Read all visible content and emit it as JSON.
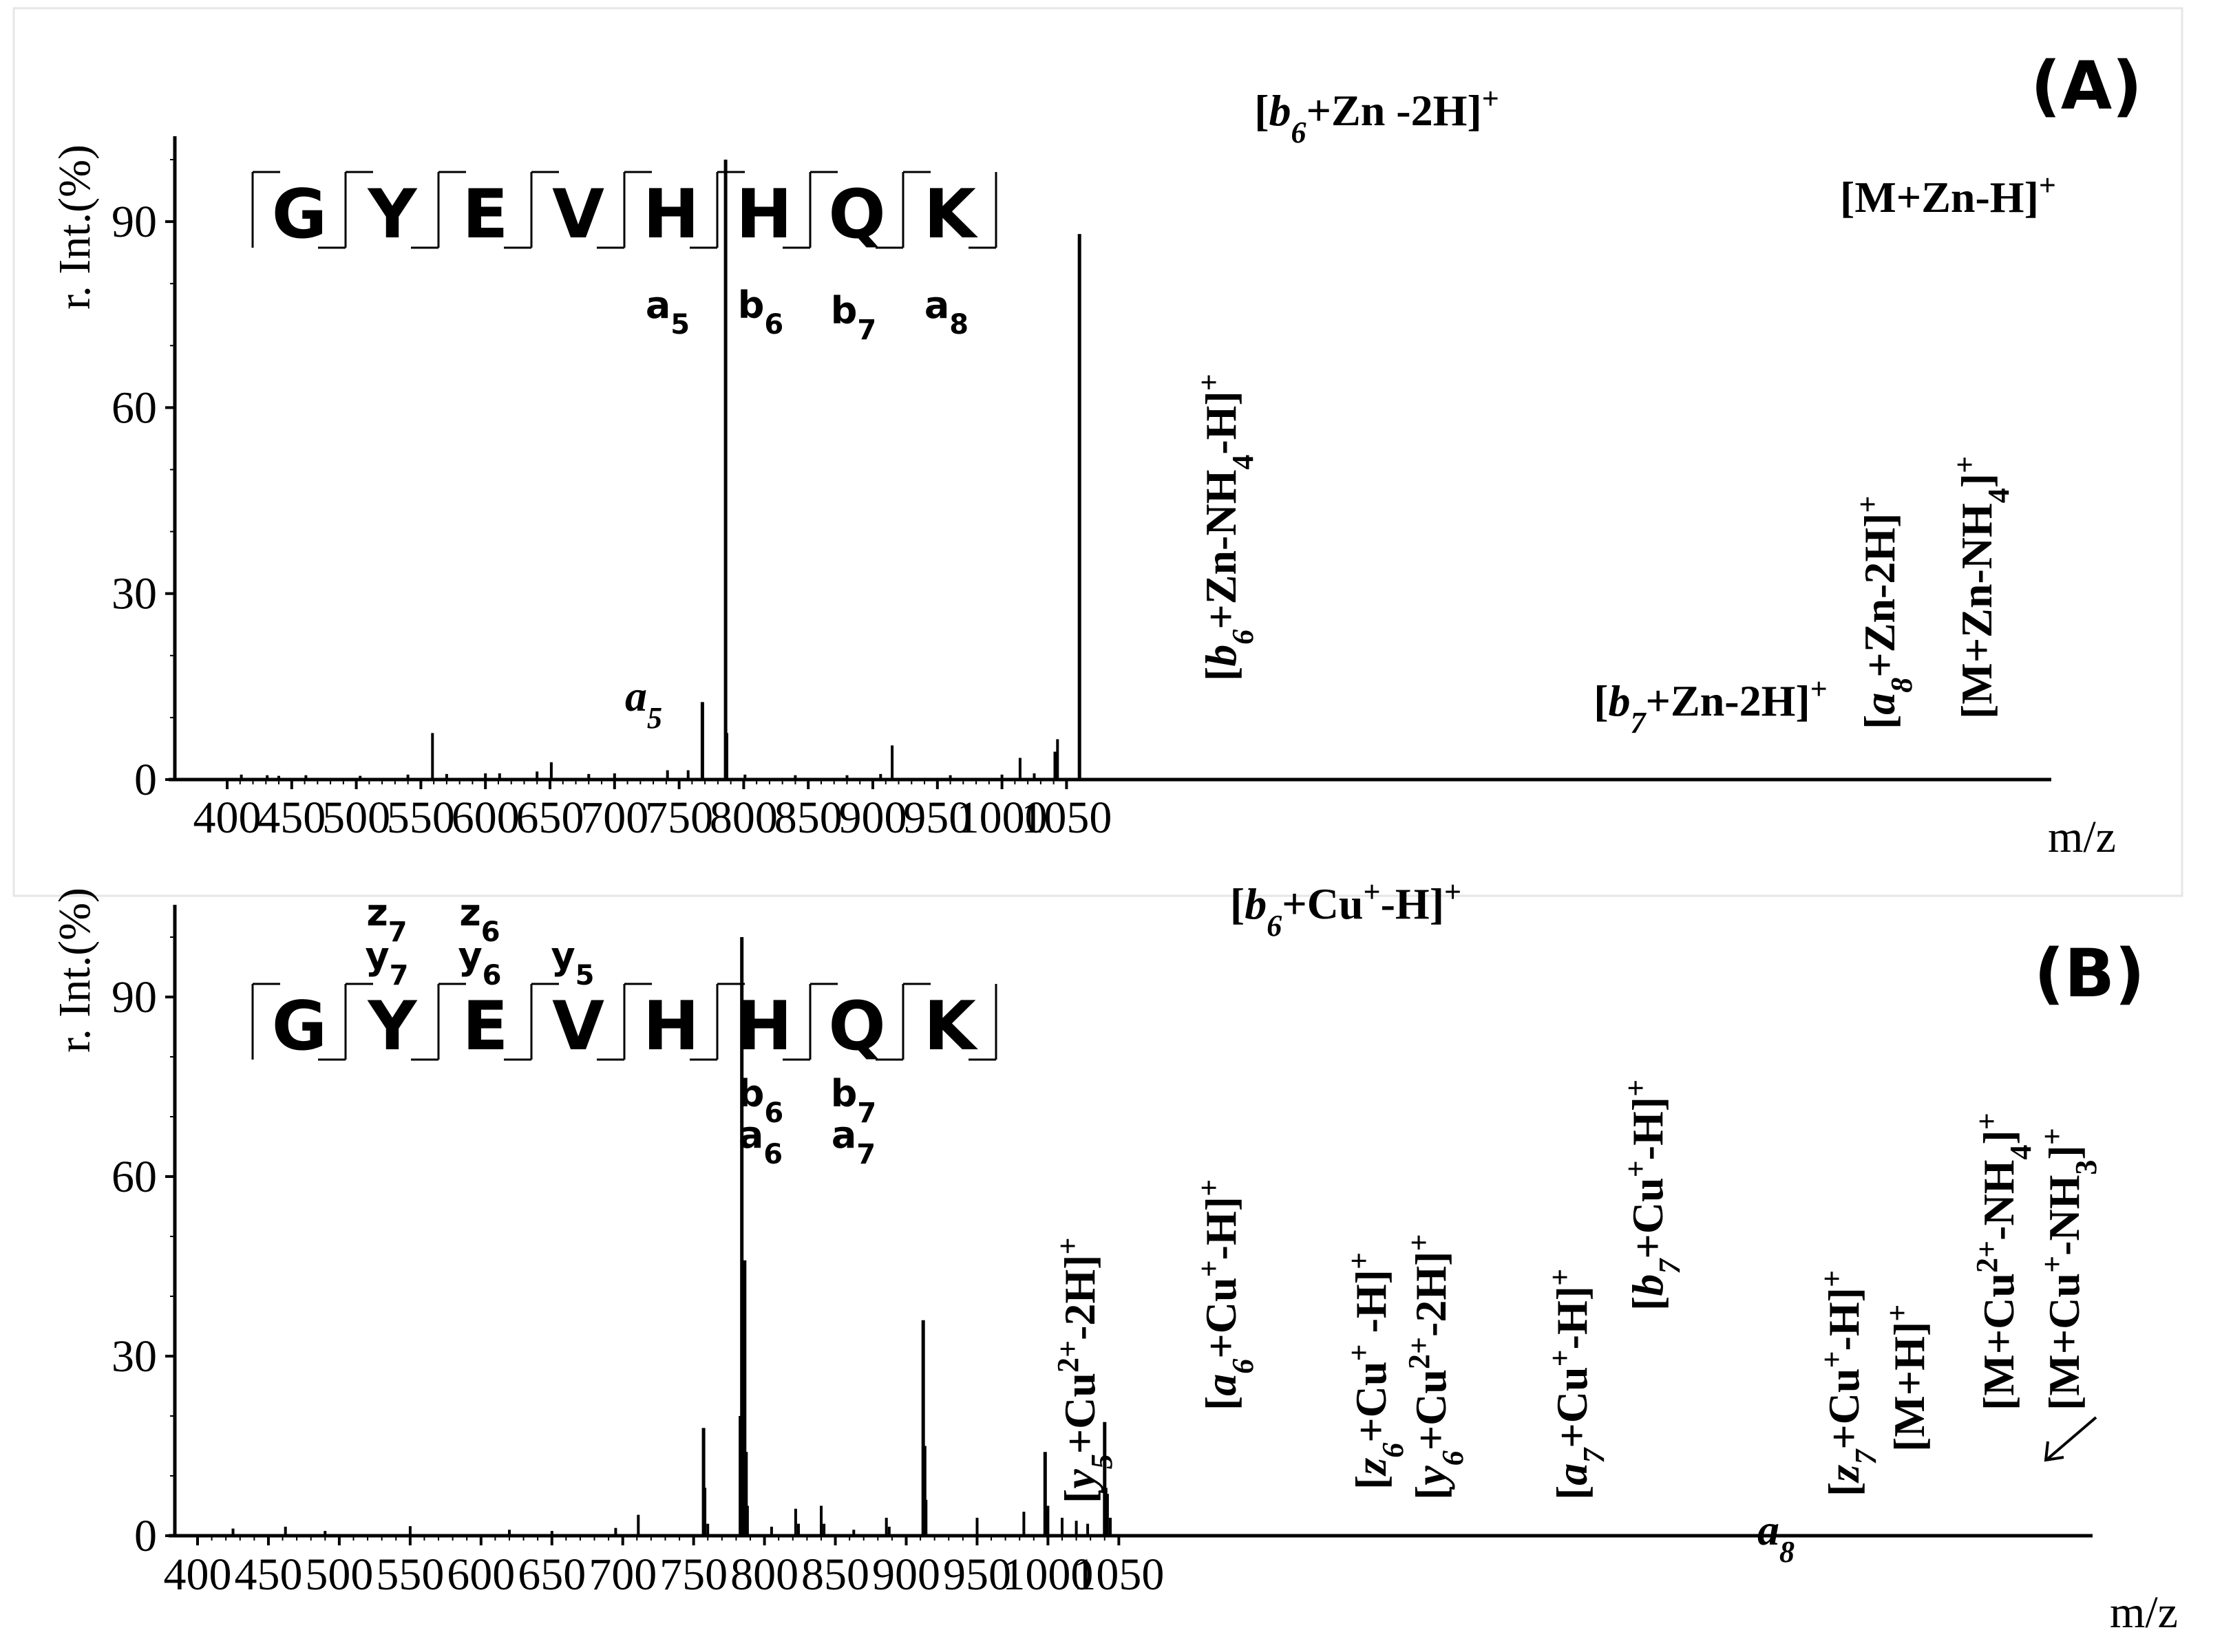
{
  "chart_data": [
    {
      "type": "bar",
      "panel_label": "(A)",
      "ylabel": "r. Int.(%)",
      "xlabel": "m/z",
      "xlim": [
        385,
        1070
      ],
      "ylim": [
        0,
        104
      ],
      "xticks": [
        "400",
        "450",
        "500",
        "550",
        "600",
        "650",
        "700",
        "750",
        "800",
        "850",
        "900",
        "950",
        "1000",
        "1050"
      ],
      "yticks": [
        "0",
        "30",
        "60",
        "90"
      ],
      "peaks": [
        {
          "mz": 411,
          "int": 0.8
        },
        {
          "mz": 431,
          "int": 0.7
        },
        {
          "mz": 440,
          "int": 0.6
        },
        {
          "mz": 461,
          "int": 0.7
        },
        {
          "mz": 503,
          "int": 0.6
        },
        {
          "mz": 540,
          "int": 0.8
        },
        {
          "mz": 559,
          "int": 7.5
        },
        {
          "mz": 570,
          "int": 0.9
        },
        {
          "mz": 600,
          "int": 1.0
        },
        {
          "mz": 611,
          "int": 1.0
        },
        {
          "mz": 640,
          "int": 1.3
        },
        {
          "mz": 651,
          "int": 2.8
        },
        {
          "mz": 680,
          "int": 0.9
        },
        {
          "mz": 700,
          "int": 1.0
        },
        {
          "mz": 741,
          "int": 1.5
        },
        {
          "mz": 757,
          "int": 1.5
        },
        {
          "mz": 768,
          "int": 12.5
        },
        {
          "mz": 786,
          "int": 100
        },
        {
          "mz": 787,
          "int": 7.5
        },
        {
          "mz": 801,
          "int": 0.8
        },
        {
          "mz": 840,
          "int": 0.7
        },
        {
          "mz": 880,
          "int": 0.7
        },
        {
          "mz": 906,
          "int": 0.9
        },
        {
          "mz": 915,
          "int": 5.5
        },
        {
          "mz": 960,
          "int": 0.7
        },
        {
          "mz": 1000,
          "int": 0.8
        },
        {
          "mz": 1014,
          "int": 3.5
        },
        {
          "mz": 1025,
          "int": 1.0
        },
        {
          "mz": 1041,
          "int": 4.5
        },
        {
          "mz": 1043,
          "int": 6.5
        },
        {
          "mz": 1060,
          "int": 88
        }
      ],
      "annotations": [
        {
          "text": "a",
          "sub": "5",
          "mz": 559
        },
        {
          "text": "[b6+Zn-NH4-H]+",
          "mz": 768
        },
        {
          "text": "[b6+Zn -2H]+",
          "mz": 786
        },
        {
          "text": "[b7+Zn-2H]+",
          "mz": 915
        },
        {
          "text": "[a8+Zn-2H]+",
          "mz": 1014
        },
        {
          "text": "[M+Zn-NH4]+",
          "mz": 1042
        },
        {
          "text": "[M+Zn-H]+",
          "mz": 1060
        }
      ],
      "sequence": [
        "G",
        "Y",
        "E",
        "V",
        "H",
        "H",
        "Q",
        "K"
      ],
      "fragments_below": [
        {
          "ion": "a",
          "sub": "5"
        },
        {
          "ion": "b",
          "sub": "6"
        },
        {
          "ion": "b",
          "sub": "7"
        },
        {
          "ion": "a",
          "sub": "8"
        }
      ]
    },
    {
      "type": "bar",
      "panel_label": "(B)",
      "ylabel": "r. Int.(%)",
      "xlabel": "m/z",
      "xlim": [
        390,
        1060
      ],
      "ylim": [
        0,
        104
      ],
      "xticks": [
        "400",
        "450",
        "500",
        "550",
        "600",
        "650",
        "700",
        "750",
        "800",
        "850",
        "900",
        "950",
        "1000",
        "1050"
      ],
      "yticks": [
        "0",
        "30",
        "60",
        "90"
      ],
      "peaks": [
        {
          "mz": 425,
          "int": 1.2
        },
        {
          "mz": 462,
          "int": 1.5
        },
        {
          "mz": 490,
          "int": 0.8
        },
        {
          "mz": 550,
          "int": 1.6
        },
        {
          "mz": 620,
          "int": 1.0
        },
        {
          "mz": 650,
          "int": 0.8
        },
        {
          "mz": 695,
          "int": 1.3
        },
        {
          "mz": 711,
          "int": 3.5
        },
        {
          "mz": 757,
          "int": 18
        },
        {
          "mz": 758,
          "int": 8
        },
        {
          "mz": 760,
          "int": 2
        },
        {
          "mz": 783,
          "int": 20
        },
        {
          "mz": 784,
          "int": 100
        },
        {
          "mz": 785,
          "int": 34
        },
        {
          "mz": 786,
          "int": 46
        },
        {
          "mz": 787,
          "int": 14
        },
        {
          "mz": 788,
          "int": 5
        },
        {
          "mz": 805,
          "int": 1.5
        },
        {
          "mz": 822,
          "int": 4.5
        },
        {
          "mz": 824,
          "int": 2
        },
        {
          "mz": 840,
          "int": 5
        },
        {
          "mz": 842,
          "int": 2
        },
        {
          "mz": 863,
          "int": 1
        },
        {
          "mz": 886,
          "int": 3
        },
        {
          "mz": 888,
          "int": 1.5
        },
        {
          "mz": 912,
          "int": 36
        },
        {
          "mz": 913,
          "int": 15
        },
        {
          "mz": 914,
          "int": 6
        },
        {
          "mz": 950,
          "int": 3
        },
        {
          "mz": 983,
          "int": 4
        },
        {
          "mz": 998,
          "int": 14
        },
        {
          "mz": 1000,
          "int": 5
        },
        {
          "mz": 1010,
          "int": 3
        },
        {
          "mz": 1020,
          "int": 2.5
        },
        {
          "mz": 1028,
          "int": 2
        },
        {
          "mz": 1040,
          "int": 19
        },
        {
          "mz": 1041,
          "int": 8
        },
        {
          "mz": 1042,
          "int": 7
        },
        {
          "mz": 1044,
          "int": 3
        }
      ],
      "annotations": [
        {
          "text": "[y5+Cu2+-2H]+",
          "mz": 711
        },
        {
          "text": "[a6+Cu+-H]+",
          "mz": 757
        },
        {
          "text": "[b6+Cu+-H]+",
          "mz": 784
        },
        {
          "text": "[z6+Cu+ -H]+",
          "mz": 822
        },
        {
          "text": "[y6+Cu2+-2H]+",
          "mz": 840
        },
        {
          "text": "[a7+Cu+-H]+",
          "mz": 886
        },
        {
          "text": "[b7+Cu+-H]+",
          "mz": 912
        },
        {
          "text": "a",
          "sub": "8",
          "mz": 950
        },
        {
          "text": "[z7+Cu+-H]+",
          "mz": 983
        },
        {
          "text": "[M+H]+",
          "mz": 998
        },
        {
          "text": "[M+Cu2+-NH4]+",
          "mz": 1038
        },
        {
          "text": "[M+Cu+-NH3]+",
          "mz": 1041
        }
      ],
      "sequence": [
        "G",
        "Y",
        "E",
        "V",
        "H",
        "H",
        "Q",
        "K"
      ],
      "fragments_above": [
        {
          "ion1": "z",
          "sub1": "7",
          "ion2": "y",
          "sub2": "7"
        },
        {
          "ion1": "z",
          "sub1": "6",
          "ion2": "y",
          "sub2": "6"
        },
        {
          "ion2": "y",
          "sub2": "5"
        }
      ],
      "fragments_below": [
        {
          "ion1": "b",
          "sub1": "6",
          "ion2": "a",
          "sub2": "6"
        },
        {
          "ion1": "b",
          "sub1": "7",
          "ion2": "a",
          "sub2": "7"
        }
      ]
    }
  ]
}
